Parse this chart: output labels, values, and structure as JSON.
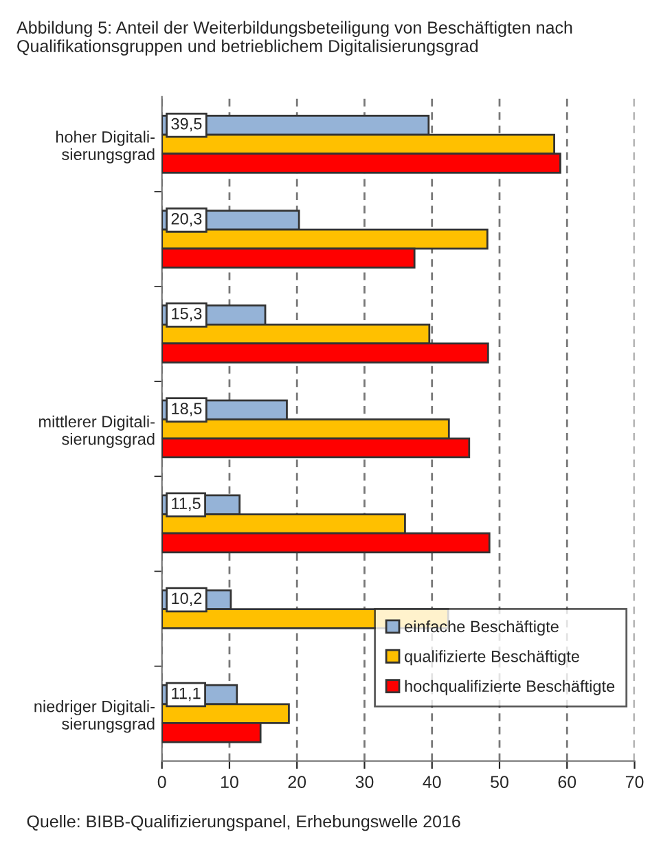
{
  "chart_data": {
    "type": "bar",
    "orientation": "horizontal",
    "title": "Abbildung 5: Anteil der Weiterbildungsbeteiligung von Beschäftigten nach Qualifikationsgruppen und betrieblichem Digitalisierungsgrad",
    "categories": [
      "hoher Digitali-\nsierungsgrad",
      null,
      null,
      "mittlerer Digitali-\nsierungsgrad",
      null,
      null,
      "niedriger Digitali-\nsierungsgrad"
    ],
    "series": [
      {
        "name": "einfache Beschäftigte",
        "color": "#95b3d7",
        "values": [
          39.5,
          20.3,
          15.3,
          18.5,
          11.5,
          10.2,
          11.1
        ],
        "value_labels": [
          "39,5",
          "20,3",
          "15,3",
          "18,5",
          "11,5",
          "10,2",
          "11,1"
        ]
      },
      {
        "name": "qualifizierte Beschäftigte",
        "color": "#ffc000",
        "values": [
          58.1,
          48.2,
          39.6,
          42.5,
          36.0,
          42.4,
          18.8
        ]
      },
      {
        "name": "hochqualifizierte Beschäftigte",
        "color": "#ff0000",
        "values": [
          59.0,
          37.4,
          48.3,
          45.5,
          48.5,
          null,
          14.6
        ]
      }
    ],
    "xlim": [
      0,
      70
    ],
    "xticks": [
      0,
      10,
      20,
      30,
      40,
      50,
      60,
      70
    ],
    "grid": "x",
    "legend": "bottom right",
    "annotations": [
      "Quelle: BIBB-Qualifizierungspanel, Erhebungswelle 2016"
    ]
  }
}
